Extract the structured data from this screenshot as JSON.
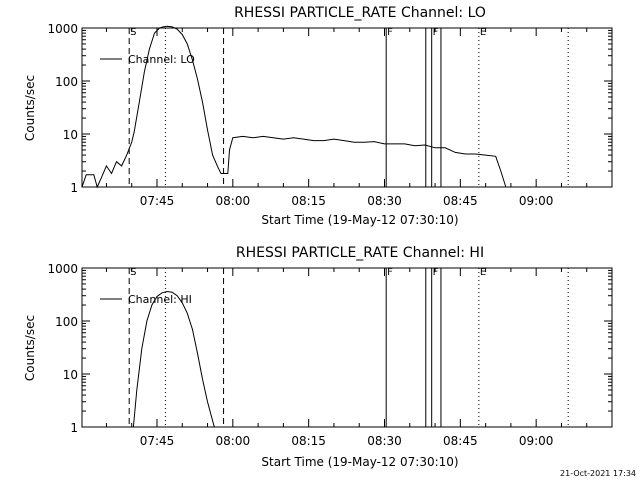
{
  "footer_timestamp": "21-Oct-2021 17:34",
  "chart_data": [
    {
      "type": "line",
      "title": "RHESSI PARTICLE_RATE Channel: LO",
      "ylabel": "Counts/sec",
      "xlabel": "Start Time (19-May-12 07:30:10)",
      "legend": "Channel: LO",
      "legend_position": "upper-left",
      "yscale": "log",
      "ylim": [
        1,
        1000
      ],
      "xlim": [
        "07:30:10",
        "09:15:00"
      ],
      "yticks": [
        "1",
        "10",
        "100",
        "1000"
      ],
      "xticks": [
        "07:45",
        "08:00",
        "08:15",
        "08:30",
        "08:45",
        "09:00"
      ],
      "event_lines": [
        {
          "time": "07:39:30",
          "style": "dashed",
          "label": "S"
        },
        {
          "time": "07:46:40",
          "style": "dotted",
          "label": ""
        },
        {
          "time": "07:58:10",
          "style": "dashed",
          "label": ""
        },
        {
          "time": "08:30:20",
          "style": "solid",
          "label": "F"
        },
        {
          "time": "08:38:10",
          "style": "solid",
          "label": ""
        },
        {
          "time": "08:39:20",
          "style": "solid",
          "label": "F"
        },
        {
          "time": "08:41:10",
          "style": "solid",
          "label": ""
        },
        {
          "time": "08:48:40",
          "style": "dotted",
          "label": "E"
        },
        {
          "time": "09:06:20",
          "style": "dotted",
          "label": ""
        }
      ],
      "x": [
        "07:30:10",
        "07:31:00",
        "07:32:30",
        "07:33:10",
        "07:34:00",
        "07:35:00",
        "07:36:00",
        "07:37:00",
        "07:38:00",
        "07:39:00",
        "07:40:00",
        "07:40:30",
        "07:41:30",
        "07:42:30",
        "07:43:30",
        "07:44:30",
        "07:45:30",
        "07:46:20",
        "07:47:00",
        "07:48:00",
        "07:49:00",
        "07:50:00",
        "07:51:00",
        "07:52:00",
        "07:53:00",
        "07:54:00",
        "07:55:00",
        "07:56:00",
        "07:57:00",
        "07:57:40",
        "07:58:30",
        "07:59:00",
        "07:59:20",
        "08:00:00",
        "08:02:00",
        "08:04:00",
        "08:06:00",
        "08:08:00",
        "08:10:00",
        "08:12:00",
        "08:14:00",
        "08:16:00",
        "08:18:00",
        "08:20:00",
        "08:22:00",
        "08:24:00",
        "08:26:00",
        "08:28:00",
        "08:30:00",
        "08:32:00",
        "08:34:00",
        "08:36:00",
        "08:38:00",
        "08:40:00",
        "08:42:00",
        "08:44:00",
        "08:46:00",
        "08:48:00",
        "08:50:00",
        "08:52:00",
        "08:53:00",
        "08:54:00"
      ],
      "values": [
        1,
        1.7,
        1.7,
        1,
        1.5,
        2.5,
        1.8,
        3,
        2.5,
        4,
        7,
        11,
        40,
        150,
        400,
        800,
        1000,
        1060,
        1080,
        1050,
        950,
        750,
        500,
        250,
        110,
        40,
        12,
        4,
        2.4,
        1.8,
        1.8,
        1.8,
        5,
        8.5,
        9,
        8.5,
        9,
        8.5,
        8,
        8.5,
        8,
        7.5,
        7.5,
        8,
        7.5,
        7,
        7,
        7.2,
        6.5,
        6.5,
        6.5,
        6,
        6.2,
        5.5,
        5.5,
        4.5,
        4.2,
        4.2,
        4,
        3.8,
        2,
        1
      ]
    },
    {
      "type": "line",
      "title": "RHESSI PARTICLE_RATE Channel: HI",
      "ylabel": "Counts/sec",
      "xlabel": "Start Time (19-May-12 07:30:10)",
      "legend": "Channel: HI",
      "legend_position": "upper-left",
      "yscale": "log",
      "ylim": [
        1,
        1000
      ],
      "xlim": [
        "07:30:10",
        "09:15:00"
      ],
      "yticks": [
        "1",
        "10",
        "100",
        "1000"
      ],
      "xticks": [
        "07:45",
        "08:00",
        "08:15",
        "08:30",
        "08:45",
        "09:00"
      ],
      "event_lines": [
        {
          "time": "07:39:30",
          "style": "dashed",
          "label": "S"
        },
        {
          "time": "07:46:40",
          "style": "dotted",
          "label": ""
        },
        {
          "time": "07:58:10",
          "style": "dashed",
          "label": ""
        },
        {
          "time": "08:30:20",
          "style": "solid",
          "label": "F"
        },
        {
          "time": "08:38:10",
          "style": "solid",
          "label": ""
        },
        {
          "time": "08:39:20",
          "style": "solid",
          "label": "F"
        },
        {
          "time": "08:41:10",
          "style": "solid",
          "label": ""
        },
        {
          "time": "08:48:40",
          "style": "dotted",
          "label": "E"
        },
        {
          "time": "09:06:20",
          "style": "dotted",
          "label": ""
        }
      ],
      "x": [
        "07:40:20",
        "07:41:00",
        "07:42:00",
        "07:43:00",
        "07:44:00",
        "07:45:00",
        "07:46:00",
        "07:47:00",
        "07:48:00",
        "07:49:00",
        "07:50:00",
        "07:51:00",
        "07:52:00",
        "07:53:00",
        "07:54:00",
        "07:55:00",
        "07:56:20"
      ],
      "values": [
        1,
        5,
        30,
        100,
        200,
        290,
        340,
        360,
        350,
        300,
        220,
        140,
        70,
        25,
        8,
        3,
        1
      ]
    }
  ]
}
